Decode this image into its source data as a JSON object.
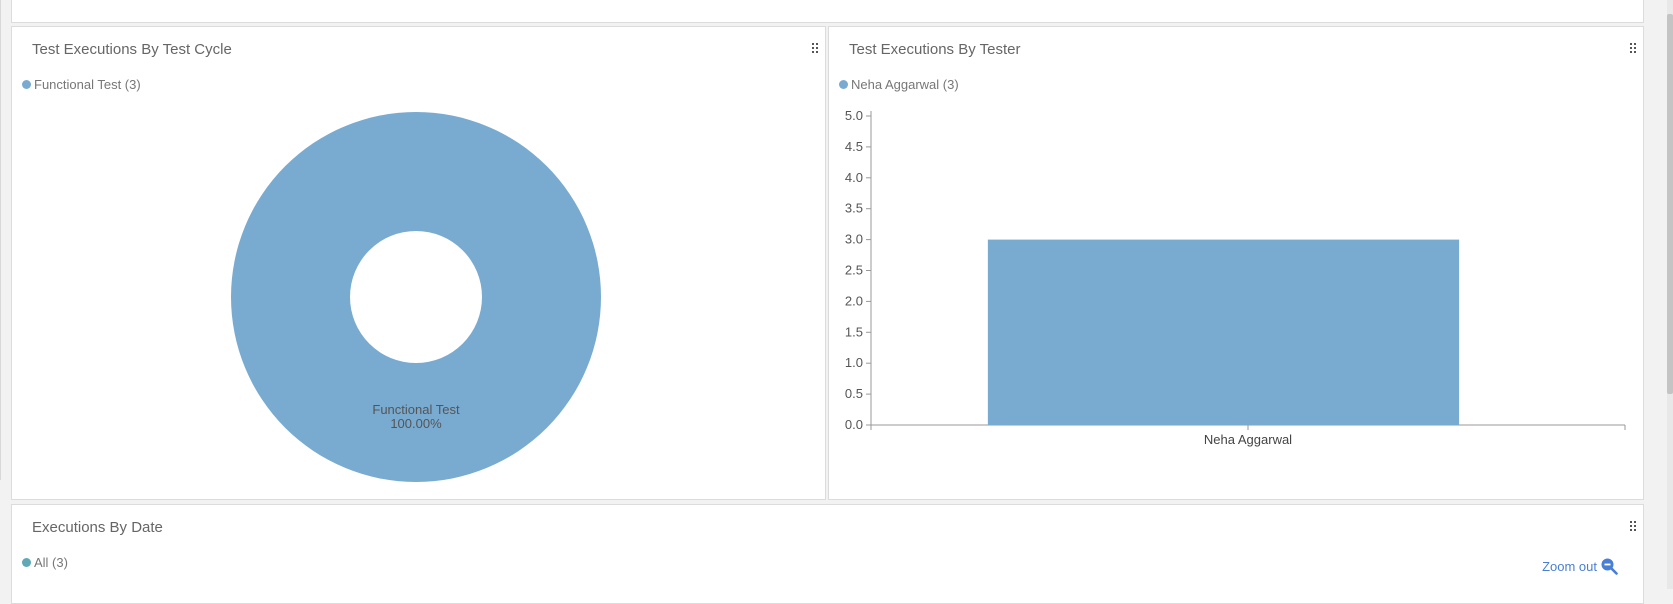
{
  "panels": {
    "cycle": {
      "title": "Test Executions By Test Cycle",
      "legend": "Functional Test (3)"
    },
    "tester": {
      "title": "Test Executions By Tester",
      "legend": "Neha Aggarwal (3)"
    },
    "date": {
      "title": "Executions By Date",
      "legend": "All (3)",
      "zoom_label": "Zoom out"
    }
  },
  "colors": {
    "series": "#79abd1",
    "date_series": "#5fa8b6",
    "zoom_link": "#4a7fd6"
  },
  "icons": {
    "grip": "drag-grip-icon",
    "zoom": "zoom-out-icon"
  },
  "chart_data": [
    {
      "type": "pie",
      "labels": [
        "Functional Test"
      ],
      "values": [
        3
      ],
      "data_labels": [
        "Functional Test",
        "100.00%"
      ],
      "donut": true
    },
    {
      "type": "bar",
      "categories": [
        "Neha Aggarwal"
      ],
      "series": [
        {
          "name": "Neha Aggarwal",
          "values": [
            3
          ]
        }
      ],
      "ylim": [
        0,
        5
      ],
      "yticks": [
        "0.0",
        "0.5",
        "1.0",
        "1.5",
        "2.0",
        "2.5",
        "3.0",
        "3.5",
        "4.0",
        "4.5",
        "5.0"
      ],
      "grid": false
    }
  ]
}
